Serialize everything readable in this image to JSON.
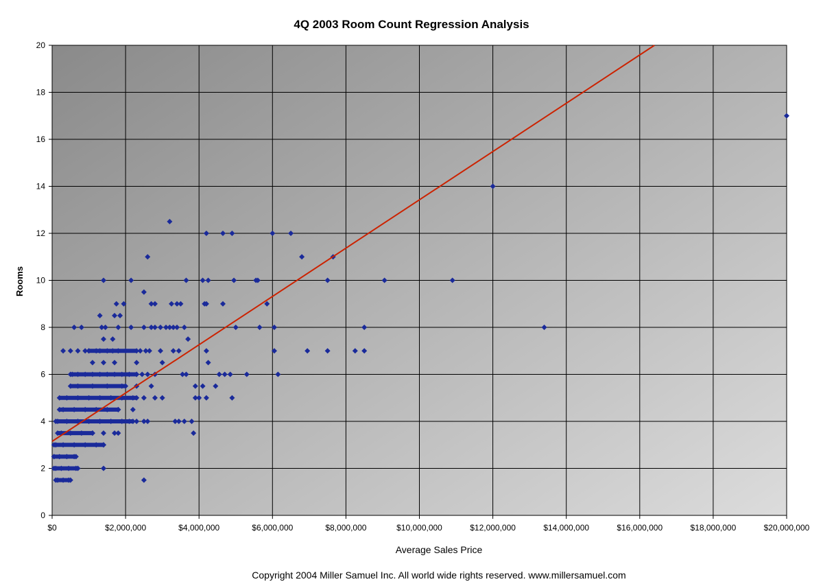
{
  "chart_data": {
    "type": "scatter",
    "title": "4Q 2003 Room Count Regression Analysis",
    "xlabel": "Average Sales Price",
    "ylabel": "Rooms",
    "xlim": [
      0,
      20000000
    ],
    "ylim": [
      0,
      20
    ],
    "x_ticks": [
      "$0",
      "$2,000,000",
      "$4,000,000",
      "$6,000,000",
      "$8,000,000",
      "$10,000,000",
      "$12,000,000",
      "$14,000,000",
      "$16,000,000",
      "$18,000,000",
      "$20,000,000"
    ],
    "y_ticks": [
      "0",
      "2",
      "4",
      "6",
      "8",
      "10",
      "12",
      "14",
      "16",
      "18",
      "20"
    ],
    "grid": true,
    "legend": "none",
    "point_color": "#1a2a9a",
    "trend_color": "#cc2200",
    "trendline": {
      "x": [
        0,
        16400000
      ],
      "y": [
        3.15,
        20
      ]
    },
    "points": [
      [
        20000000,
        17
      ],
      [
        12000000,
        14
      ],
      [
        13400000,
        8
      ],
      [
        10900000,
        10
      ],
      [
        9050000,
        10
      ],
      [
        3200000,
        12.5
      ],
      [
        4200000,
        12
      ],
      [
        4650000,
        12
      ],
      [
        4900000,
        12
      ],
      [
        6000000,
        12
      ],
      [
        6500000,
        12
      ],
      [
        7650000,
        11
      ],
      [
        6800000,
        11
      ],
      [
        2600000,
        11
      ],
      [
        7500000,
        10
      ],
      [
        5600000,
        10
      ],
      [
        5550000,
        10
      ],
      [
        4950000,
        10
      ],
      [
        4250000,
        10
      ],
      [
        4100000,
        10
      ],
      [
        3650000,
        10
      ],
      [
        2150000,
        10
      ],
      [
        1400000,
        10
      ],
      [
        2500000,
        9.5
      ],
      [
        5850000,
        9
      ],
      [
        4650000,
        9
      ],
      [
        4200000,
        9
      ],
      [
        4150000,
        9
      ],
      [
        3500000,
        9
      ],
      [
        3400000,
        9
      ],
      [
        3250000,
        9
      ],
      [
        2800000,
        9
      ],
      [
        2700000,
        9
      ],
      [
        1950000,
        9
      ],
      [
        1750000,
        9
      ],
      [
        1300000,
        8.5
      ],
      [
        1700000,
        8.5
      ],
      [
        1850000,
        8.5
      ],
      [
        8500000,
        8
      ],
      [
        6050000,
        8
      ],
      [
        5650000,
        8
      ],
      [
        5000000,
        8
      ],
      [
        3600000,
        8
      ],
      [
        3400000,
        8
      ],
      [
        3300000,
        8
      ],
      [
        3200000,
        8
      ],
      [
        3100000,
        8
      ],
      [
        2950000,
        8
      ],
      [
        2800000,
        8
      ],
      [
        2700000,
        8
      ],
      [
        2500000,
        8
      ],
      [
        2150000,
        8
      ],
      [
        1800000,
        8
      ],
      [
        1450000,
        8
      ],
      [
        1350000,
        8
      ],
      [
        600000,
        8
      ],
      [
        800000,
        8
      ],
      [
        3700000,
        7.5
      ],
      [
        1650000,
        7.5
      ],
      [
        1400000,
        7.5
      ],
      [
        8500000,
        7
      ],
      [
        8250000,
        7
      ],
      [
        7500000,
        7
      ],
      [
        6950000,
        7
      ],
      [
        6050000,
        7
      ],
      [
        4200000,
        7
      ],
      [
        3450000,
        7
      ],
      [
        3300000,
        7
      ],
      [
        2950000,
        7
      ],
      [
        2650000,
        7
      ],
      [
        2550000,
        7
      ],
      [
        2400000,
        7
      ],
      [
        2000000,
        7
      ],
      [
        1800000,
        7
      ],
      [
        1650000,
        7
      ],
      [
        1500000,
        7
      ],
      [
        1300000,
        7
      ],
      [
        1200000,
        7
      ],
      [
        1000000,
        7
      ],
      [
        900000,
        7
      ],
      [
        700000,
        7
      ],
      [
        500000,
        7
      ],
      [
        300000,
        7
      ],
      [
        4250000,
        6.5
      ],
      [
        3000000,
        6.5
      ],
      [
        2300000,
        6.5
      ],
      [
        1700000,
        6.5
      ],
      [
        1400000,
        6.5
      ],
      [
        1100000,
        6.5
      ],
      [
        6150000,
        6
      ],
      [
        5300000,
        6
      ],
      [
        4850000,
        6
      ],
      [
        4700000,
        6
      ],
      [
        4550000,
        6
      ],
      [
        3650000,
        6
      ],
      [
        3550000,
        6
      ],
      [
        2800000,
        6
      ],
      [
        2600000,
        6
      ],
      [
        2450000,
        6
      ],
      [
        2300000,
        6
      ],
      [
        2100000,
        6
      ],
      [
        1900000,
        6
      ],
      [
        1700000,
        6
      ],
      [
        1500000,
        6
      ],
      [
        1300000,
        6
      ],
      [
        1100000,
        6
      ],
      [
        900000,
        6
      ],
      [
        700000,
        6
      ],
      [
        550000,
        6
      ],
      [
        4450000,
        5.5
      ],
      [
        3900000,
        5.5
      ],
      [
        4100000,
        5.5
      ],
      [
        2700000,
        5.5
      ],
      [
        2300000,
        5.5
      ],
      [
        1900000,
        5.5
      ],
      [
        1500000,
        5.5
      ],
      [
        1100000,
        5.5
      ],
      [
        700000,
        5.5
      ],
      [
        4900000,
        5
      ],
      [
        4200000,
        5
      ],
      [
        4000000,
        5
      ],
      [
        3900000,
        5
      ],
      [
        3000000,
        5
      ],
      [
        2800000,
        5
      ],
      [
        2500000,
        5
      ],
      [
        2200000,
        5
      ],
      [
        1900000,
        5
      ],
      [
        1600000,
        5
      ],
      [
        1300000,
        5
      ],
      [
        1000000,
        5
      ],
      [
        700000,
        5
      ],
      [
        400000,
        5
      ],
      [
        2200000,
        4.5
      ],
      [
        1800000,
        4.5
      ],
      [
        1500000,
        4.5
      ],
      [
        1200000,
        4.5
      ],
      [
        900000,
        4.5
      ],
      [
        600000,
        4.5
      ],
      [
        300000,
        4.5
      ],
      [
        3800000,
        4
      ],
      [
        3600000,
        4
      ],
      [
        3450000,
        4
      ],
      [
        3350000,
        4
      ],
      [
        2600000,
        4
      ],
      [
        2500000,
        4
      ],
      [
        2300000,
        4
      ],
      [
        2100000,
        4
      ],
      [
        1900000,
        4
      ],
      [
        1600000,
        4
      ],
      [
        1300000,
        4
      ],
      [
        1000000,
        4
      ],
      [
        700000,
        4
      ],
      [
        400000,
        4
      ],
      [
        150000,
        4
      ],
      [
        3850000,
        3.5
      ],
      [
        1800000,
        3.5
      ],
      [
        1700000,
        3.5
      ],
      [
        1400000,
        3.5
      ],
      [
        1100000,
        3.5
      ],
      [
        800000,
        3.5
      ],
      [
        500000,
        3.5
      ],
      [
        250000,
        3.5
      ],
      [
        1400000,
        3
      ],
      [
        1200000,
        3
      ],
      [
        900000,
        3
      ],
      [
        600000,
        3
      ],
      [
        300000,
        3
      ],
      [
        100000,
        3
      ],
      [
        600000,
        2.5
      ],
      [
        400000,
        2.5
      ],
      [
        200000,
        2.5
      ],
      [
        50000,
        2.5
      ],
      [
        1400000,
        2
      ],
      [
        650000,
        2
      ],
      [
        450000,
        2
      ],
      [
        250000,
        2
      ],
      [
        100000,
        2
      ],
      [
        2500000,
        1.5
      ],
      [
        450000,
        1.5
      ],
      [
        300000,
        1.5
      ],
      [
        150000,
        1.5
      ]
    ],
    "dense_bands": [
      {
        "y": 1.5,
        "x_from": 100000,
        "x_to": 500000
      },
      {
        "y": 2.0,
        "x_from": 50000,
        "x_to": 700000
      },
      {
        "y": 2.5,
        "x_from": 50000,
        "x_to": 650000
      },
      {
        "y": 3.0,
        "x_from": 50000,
        "x_to": 1400000
      },
      {
        "y": 3.5,
        "x_from": 150000,
        "x_to": 1100000
      },
      {
        "y": 4.0,
        "x_from": 100000,
        "x_to": 2200000
      },
      {
        "y": 4.5,
        "x_from": 200000,
        "x_to": 1800000
      },
      {
        "y": 5.0,
        "x_from": 200000,
        "x_to": 2300000
      },
      {
        "y": 5.5,
        "x_from": 500000,
        "x_to": 2000000
      },
      {
        "y": 6.0,
        "x_from": 500000,
        "x_to": 2300000
      },
      {
        "y": 7.0,
        "x_from": 1000000,
        "x_to": 2300000
      }
    ],
    "copyright": "Copyright 2004 Miller Samuel Inc.  All world wide rights reserved.  www.millersamuel.com"
  }
}
